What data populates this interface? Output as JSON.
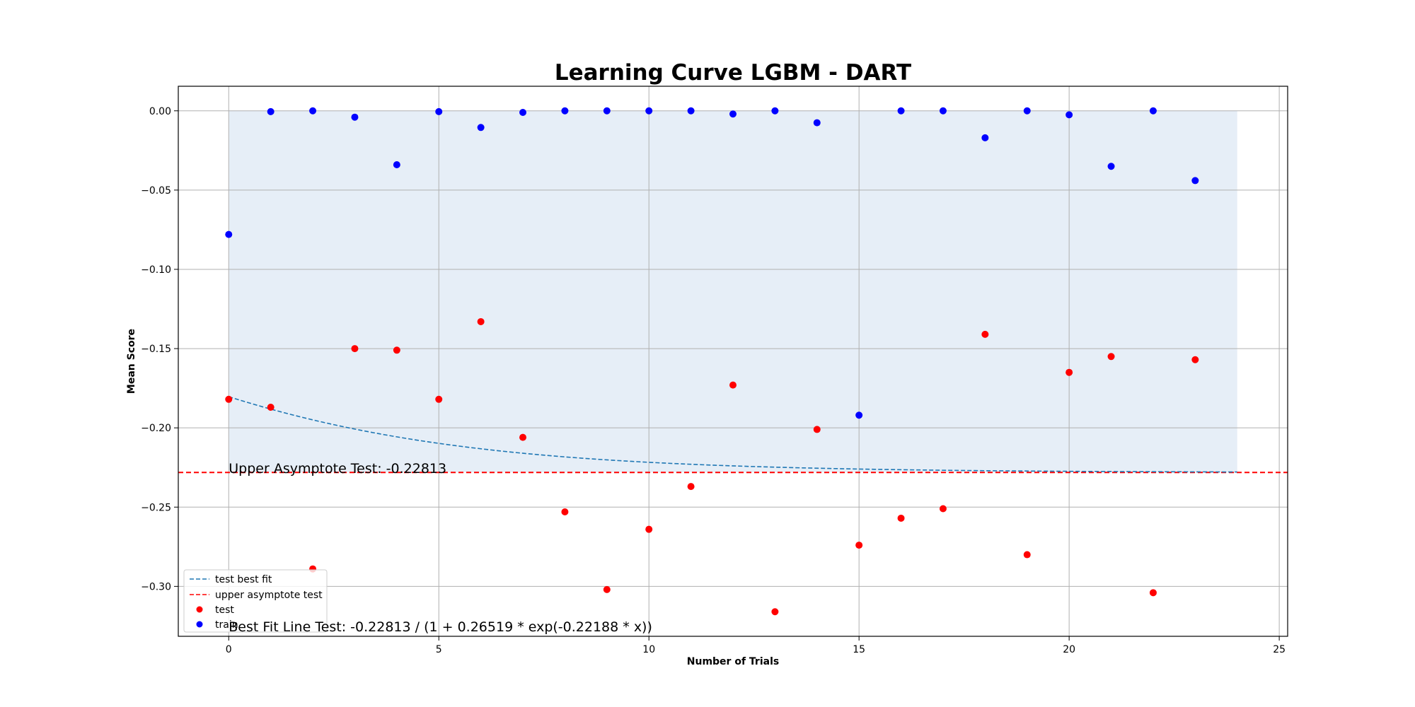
{
  "chart_data": {
    "type": "scatter",
    "title": "Learning Curve LGBM - DART",
    "xlabel": "Number of Trials",
    "ylabel": "Mean Score",
    "xlim": [
      -1.2,
      25.2
    ],
    "ylim": [
      -0.3315,
      0.0155
    ],
    "xticks": [
      0,
      5,
      10,
      15,
      20,
      25
    ],
    "yticks": [
      0.0,
      -0.05,
      -0.1,
      -0.15,
      -0.2,
      -0.25,
      -0.3
    ],
    "ytick_labels": [
      "0.00",
      "−0.05",
      "−0.10",
      "−0.15",
      "−0.20",
      "−0.25",
      "−0.30"
    ],
    "grid": true,
    "legend_position": "lower-left",
    "fill_between": {
      "x_start": 0,
      "x_end": 24,
      "y_top": 0.0,
      "y_bottom": -0.22813,
      "color": "#e6eef7"
    },
    "asymptote": {
      "name": "upper asymptote test",
      "y": -0.22813,
      "color": "#ff0000"
    },
    "best_fit": {
      "name": "test best fit",
      "color": "#1f77b4",
      "a": -0.22813,
      "b": 0.26519,
      "c": -0.22188,
      "x_start": 0,
      "x_end": 24
    },
    "series": [
      {
        "name": "test",
        "color": "#ff0000",
        "x": [
          0,
          1,
          2,
          3,
          4,
          5,
          6,
          7,
          8,
          9,
          10,
          11,
          12,
          13,
          14,
          15,
          16,
          17,
          18,
          19,
          20,
          21,
          22,
          23
        ],
        "y": [
          -0.182,
          -0.187,
          -0.289,
          -0.15,
          -0.151,
          -0.182,
          -0.133,
          -0.206,
          -0.253,
          -0.302,
          -0.264,
          -0.237,
          -0.173,
          -0.316,
          -0.201,
          -0.274,
          -0.257,
          -0.251,
          -0.141,
          -0.28,
          -0.165,
          -0.155,
          -0.304,
          -0.157
        ]
      },
      {
        "name": "train",
        "color": "#0000ff",
        "x": [
          0,
          1,
          2,
          3,
          4,
          5,
          6,
          7,
          8,
          9,
          10,
          11,
          12,
          13,
          14,
          15,
          16,
          17,
          18,
          19,
          20,
          21,
          22,
          23
        ],
        "y": [
          -0.078,
          -0.0005,
          0.0,
          -0.004,
          -0.034,
          -0.0005,
          -0.0105,
          -0.001,
          0.0,
          0.0,
          0.0,
          0.0,
          -0.002,
          0.0,
          -0.0075,
          -0.192,
          0.0,
          0.0,
          -0.017,
          0.0,
          -0.0025,
          -0.035,
          0.0,
          -0.044
        ]
      }
    ],
    "annotations": {
      "asymptote_text": "Upper Asymptote Test: -0.22813",
      "best_fit_text": "Best Fit Line Test: -0.22813 / (1 + 0.26519 * exp(-0.22188 * x))"
    }
  }
}
